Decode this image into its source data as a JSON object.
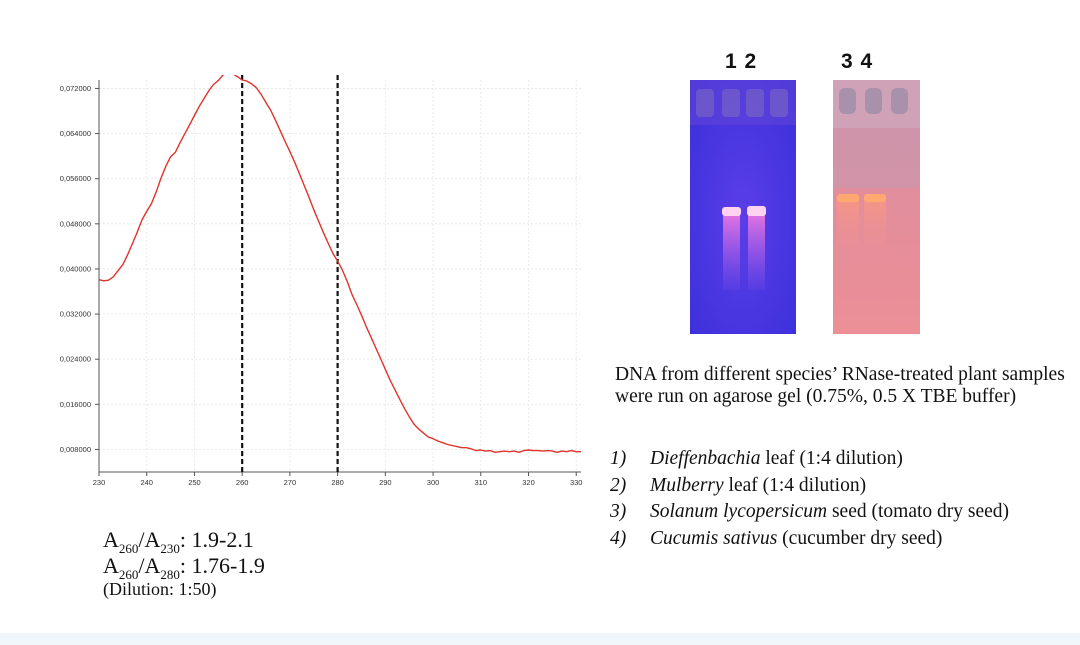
{
  "chart_data": {
    "type": "line",
    "title": "",
    "xlabel": "",
    "ylabel": "",
    "xlim": [
      230,
      331
    ],
    "ylim": [
      0.004,
      0.0735
    ],
    "x_ticks": [
      230,
      240,
      250,
      260,
      270,
      280,
      290,
      300,
      310,
      320,
      330
    ],
    "y_ticks": [
      0.008,
      0.016,
      0.024,
      0.032,
      0.04,
      0.048,
      0.056,
      0.064,
      0.072
    ],
    "x_tick_labels": [
      "230",
      "240",
      "250",
      "260",
      "270",
      "280",
      "290",
      "300",
      "310",
      "320",
      "330"
    ],
    "y_tick_labels": [
      "0,008000",
      "0,016000",
      "0,024000",
      "0,032000",
      "0,040000",
      "0,048000",
      "0,056000",
      "0,064000",
      "0,072000"
    ],
    "grid": true,
    "line_color": "#e0332b",
    "reference_lines_x": [
      260,
      280
    ],
    "series": [
      {
        "x": [
          230,
          231,
          232,
          233,
          234,
          235,
          236,
          237,
          238,
          239,
          240,
          241,
          242,
          243,
          244,
          245,
          246,
          247,
          248,
          249,
          250,
          251,
          252,
          253,
          254,
          255,
          256,
          257,
          258,
          259,
          260,
          261,
          262,
          263,
          264,
          265,
          266,
          267,
          268,
          269,
          270,
          271,
          272,
          273,
          274,
          275,
          276,
          277,
          278,
          279,
          280,
          281,
          282,
          283,
          284,
          285,
          286,
          287,
          288,
          289,
          290,
          291,
          292,
          293,
          294,
          295,
          296,
          297,
          298,
          299,
          300,
          301,
          302,
          303,
          304,
          305,
          306,
          307,
          308,
          309,
          310,
          311,
          312,
          313,
          314,
          315,
          316,
          317,
          318,
          319,
          320,
          321,
          322,
          323,
          324,
          325,
          326,
          327,
          328,
          329,
          330,
          331
        ],
        "y": [
          0.0381,
          0.0379,
          0.038,
          0.0386,
          0.0397,
          0.0408,
          0.0425,
          0.0445,
          0.0465,
          0.0487,
          0.0502,
          0.0516,
          0.0537,
          0.0561,
          0.0582,
          0.0599,
          0.0607,
          0.0624,
          0.064,
          0.0656,
          0.0672,
          0.0688,
          0.0702,
          0.0716,
          0.0727,
          0.0734,
          0.0744,
          0.0747,
          0.0746,
          0.0741,
          0.0735,
          0.0733,
          0.0728,
          0.0721,
          0.0709,
          0.0695,
          0.0681,
          0.0663,
          0.0645,
          0.0626,
          0.0608,
          0.0589,
          0.0569,
          0.0548,
          0.0527,
          0.0505,
          0.0485,
          0.0465,
          0.0446,
          0.0428,
          0.0414,
          0.0398,
          0.0378,
          0.0355,
          0.0337,
          0.0318,
          0.0298,
          0.0279,
          0.026,
          0.0241,
          0.0222,
          0.0203,
          0.0186,
          0.0169,
          0.0153,
          0.0138,
          0.0125,
          0.0116,
          0.0109,
          0.0102,
          0.0099,
          0.0095,
          0.0092,
          0.0089,
          0.0087,
          0.0085,
          0.0083,
          0.0083,
          0.0081,
          0.0078,
          0.0079,
          0.0077,
          0.0078,
          0.0075,
          0.0076,
          0.0077,
          0.0076,
          0.0077,
          0.0075,
          0.0078,
          0.0079,
          0.0078,
          0.0078,
          0.0077,
          0.0078,
          0.0077,
          0.0075,
          0.0077,
          0.0076,
          0.0078,
          0.0076,
          0.0076
        ]
      }
    ]
  },
  "ratios": {
    "r1": {
      "a": "A",
      "sub1": "260",
      "slash": "/",
      "sub2": "230",
      "value": ": 1.9-2.1"
    },
    "r2": {
      "a": "A",
      "sub1": "260",
      "slash": "/",
      "sub2": "280",
      "value": ": 1.76-1.9"
    },
    "dilution": "(Dilution: 1:50)"
  },
  "gel": {
    "label_left": "1 2",
    "label_right": "3 4",
    "left_color": "#4338e6",
    "right_color": "#e8899a"
  },
  "description": "DNA from different species’ RNase-treated plant samples were run on agarose gel (0.75%, 0.5 X TBE buffer)",
  "samples": [
    {
      "num": "1)",
      "species": "Dieffenbachia",
      "rest": " leaf (1:4 dilution)"
    },
    {
      "num": "2)",
      "species": "Mulberry",
      "rest": " leaf (1:4 dilution)"
    },
    {
      "num": "3)",
      "species": "Solanum lycopersicum",
      "rest": " seed (tomato dry seed)"
    },
    {
      "num": "4)",
      "species": "Cucumis sativus",
      "rest": " (cucumber dry seed)"
    }
  ]
}
